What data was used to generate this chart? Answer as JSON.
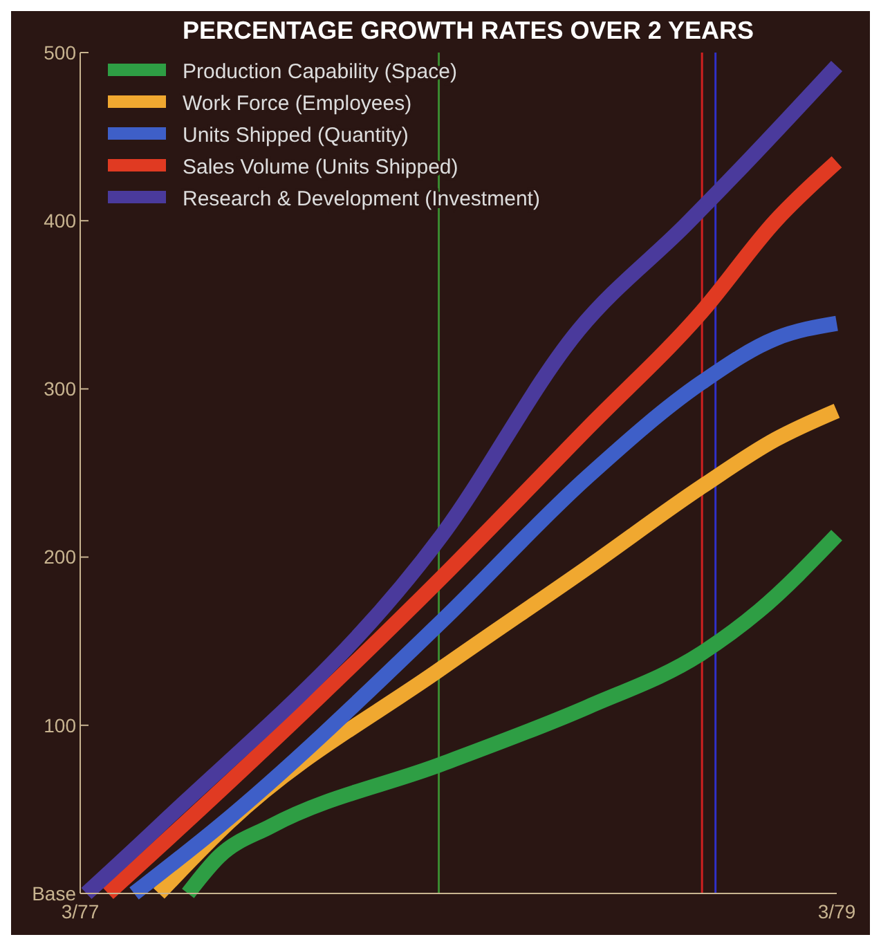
{
  "chart_data": {
    "type": "line",
    "title": "PERCENTAGE GROWTH RATES OVER 2 YEARS",
    "xlim": [
      "1977-03-01",
      "1979-03-01"
    ],
    "xticks": [
      {
        "value": "1977-03-01",
        "label": "3/77"
      },
      {
        "value": "1979-03-01",
        "label": "3/79"
      }
    ],
    "ylim": [
      0,
      500
    ],
    "yticks": [
      {
        "value": 0,
        "label": "Base"
      },
      100,
      200,
      300,
      400,
      500
    ],
    "grid": false,
    "legend": "top left",
    "marker": "none",
    "line_style": "solid",
    "series": [
      {
        "name": "Production Capability (Space)",
        "color": "#2e9e44",
        "x": [
          "1977-06-13",
          "1977-07-13",
          "1977-09-01",
          "1978-02-13",
          "1978-07-04",
          "1978-10-22",
          "1978-12-16",
          "1979-03-01"
        ],
        "values": [
          0,
          22,
          40,
          77,
          111,
          143,
          168,
          213
        ]
      },
      {
        "name": "Work Force (Employees)",
        "color": "#f0a830",
        "x": [
          "1977-05-16",
          "1977-07-22",
          "1978-02-13",
          "1978-07-04",
          "1978-10-22",
          "1979-01-01",
          "1979-03-01"
        ],
        "values": [
          0,
          42,
          134,
          194,
          242,
          270,
          287
        ]
      },
      {
        "name": "Units Shipped (Quantity)",
        "color": "#3e5fc8",
        "x": [
          "1977-04-22",
          "1977-07-13",
          "1978-02-13",
          "1978-07-04",
          "1978-10-22",
          "1979-01-01",
          "1979-03-01"
        ],
        "values": [
          0,
          40,
          162,
          248,
          304,
          330,
          339
        ]
      },
      {
        "name": "Sales Volume (Units Shipped)",
        "color": "#e03a22",
        "x": [
          "1977-03-28",
          "1977-06-07",
          "1978-02-13",
          "1978-07-04",
          "1978-10-22",
          "1979-01-01",
          "1979-03-01"
        ],
        "values": [
          0,
          40,
          188,
          277,
          346,
          400,
          435
        ]
      },
      {
        "name": "Research & Development (Investment)",
        "color": "#4a3a9c",
        "x": [
          "1977-03-07",
          "1977-05-16",
          "1978-02-13",
          "1978-06-25",
          "1978-10-07",
          "1978-11-25",
          "1979-03-01"
        ],
        "values": [
          0,
          40,
          213,
          335,
          398,
          429,
          492
        ]
      }
    ],
    "ref_lines": [
      {
        "axis": "x",
        "value": "1978-02-10",
        "color": "#3a8a30"
      },
      {
        "axis": "x",
        "value": "1978-10-22",
        "color": "#d02020"
      },
      {
        "axis": "x",
        "value": "1978-11-04",
        "color": "#3030c8"
      }
    ]
  }
}
